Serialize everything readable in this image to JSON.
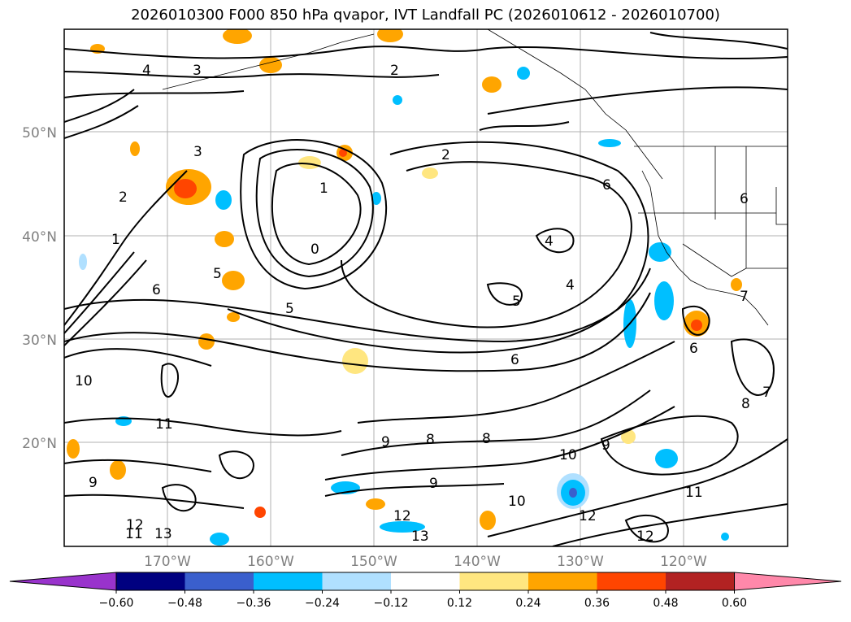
{
  "title": "2026010300 F000 850 hPa qvapor, IVT Landfall PC (2026010612 - 2026010700)",
  "map": {
    "lat_ticks": [
      "50°N",
      "40°N",
      "30°N",
      "20°N"
    ],
    "lon_ticks": [
      "170°W",
      "160°W",
      "150°W",
      "140°W",
      "130°W",
      "120°W"
    ],
    "grid": true,
    "contour_color": "#000000",
    "contour_labels": [
      "0",
      "1",
      "2",
      "3",
      "4",
      "5",
      "6",
      "7",
      "8",
      "9",
      "10",
      "11",
      "12",
      "13"
    ]
  },
  "colorbar": {
    "extend": "both",
    "colors": [
      "#9933cc",
      "#000080",
      "#3a5fcd",
      "#00bfff",
      "#b0e0ff",
      "#ffffff",
      "#ffe680",
      "#ffa500",
      "#ff4500",
      "#b22222",
      "#ff88aa"
    ],
    "tick_labels": [
      "−0.60",
      "−0.48",
      "−0.36",
      "−0.24",
      "−0.12",
      "0.12",
      "0.24",
      "0.36",
      "0.48",
      "0.60"
    ]
  }
}
